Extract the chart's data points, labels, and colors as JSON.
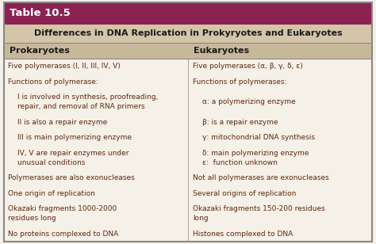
{
  "title": "Table 10.5",
  "subtitle": "Differences in DNA Replication in Prokyryotes and Eukaryotes",
  "col_headers": [
    "Prokaryotes",
    "Eukaryotes"
  ],
  "title_bg": "#8B2252",
  "subtitle_bg": "#D4C5A9",
  "header_bg": "#C8B89A",
  "body_bg": "#F5F0E8",
  "title_color": "#FFFFFF",
  "subtitle_color": "#1A1A1A",
  "header_color": "#1A1A1A",
  "body_color": "#5C2A0E",
  "prokaryotes": [
    [
      "Five polymerases (I, II, III, IV, V)",
      false
    ],
    [
      "Functions of polymerase:",
      false
    ],
    [
      "I is involved in synthesis, proofreading,\nrepair, and removal of RNA primers",
      true
    ],
    [
      "II is also a repair enzyme",
      true
    ],
    [
      "III is main polymerizing enzyme",
      true
    ],
    [
      "IV, V are repair enzymes under\nunusual conditions",
      true
    ],
    [
      "Polymerases are also exonucleases",
      false
    ],
    [
      "One origin of replication",
      false
    ],
    [
      "Okazaki fragments 1000-2000\nresidues long",
      false
    ],
    [
      "No proteins complexed to DNA",
      false
    ]
  ],
  "eukaryotes": [
    [
      "Five polymerases (α, β, γ, δ, ε)",
      false
    ],
    [
      "Functions of polymerases:",
      false
    ],
    [
      "α: a polymerizing enzyme",
      true
    ],
    [
      "β: is a repair enzyme",
      true
    ],
    [
      "γ: mitochondrial DNA synthesis",
      true
    ],
    [
      "δ: main polymerizing enzyme\nε:  function unknown",
      true
    ],
    [
      "Not all polymerases are exonucleases",
      false
    ],
    [
      "Several origins of replication",
      false
    ],
    [
      "Okazaki fragments 150-200 residues\nlong",
      false
    ],
    [
      "Histones complexed to DNA",
      false
    ]
  ]
}
